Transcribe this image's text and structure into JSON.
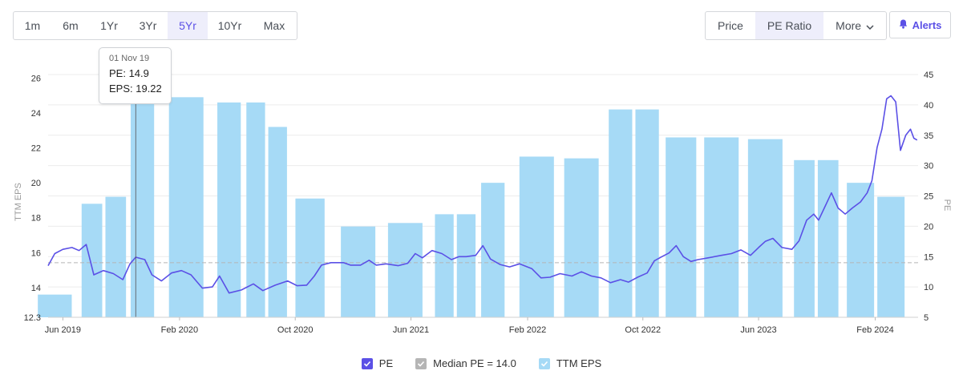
{
  "toolbar": {
    "ranges": [
      {
        "label": "1m",
        "active": false
      },
      {
        "label": "6m",
        "active": false
      },
      {
        "label": "1Yr",
        "active": false
      },
      {
        "label": "3Yr",
        "active": false
      },
      {
        "label": "5Yr",
        "active": true
      },
      {
        "label": "10Yr",
        "active": false
      },
      {
        "label": "Max",
        "active": false
      }
    ],
    "views": [
      {
        "label": "Price",
        "active": false
      },
      {
        "label": "PE Ratio",
        "active": true
      },
      {
        "label": "More",
        "active": false,
        "icon": "chevron-down-icon"
      }
    ],
    "alerts_label": "Alerts",
    "alerts_icon": "bell-icon"
  },
  "tooltip": {
    "date": "01 Nov 19",
    "pe": "PE: 14.9",
    "eps": "EPS: 19.22"
  },
  "legend": [
    {
      "label": "PE",
      "color": "#5b50e6",
      "checked": true
    },
    {
      "label": "Median PE = 14.0",
      "color": "#b5b5b5",
      "checked": true
    },
    {
      "label": "TTM EPS",
      "color": "#a6daf6",
      "checked": true
    }
  ],
  "chart_data": {
    "type": "bar",
    "x_ticks": [
      "Jun 2019",
      "Feb 2020",
      "Oct 2020",
      "Jun 2021",
      "Feb 2022",
      "Oct 2022",
      "Jun 2023",
      "Feb 2024"
    ],
    "ylabel_left": "TTM EPS",
    "ylabel_right": "PE",
    "y_left_ticks": [
      12.3,
      14,
      16,
      18,
      20,
      22,
      24,
      26
    ],
    "y_right_ticks": [
      5,
      10,
      15,
      20,
      25,
      30,
      35,
      40,
      45
    ],
    "ylim_left": [
      12.3,
      26.2
    ],
    "ylim_right": [
      5,
      45
    ],
    "xlim": [
      "2019-05-01",
      "2024-05-01"
    ],
    "grid": true,
    "bar_color": "#a6daf6",
    "pe_color": "#5b50e6",
    "median_pe": 14.0,
    "median_color": "#b5b5b5",
    "eps_series": {
      "name": "TTM EPS",
      "points": [
        {
          "date": "2019-05-15",
          "value": 13.6
        },
        {
          "date": "2019-08-01",
          "value": 18.8
        },
        {
          "date": "2019-09-20",
          "value": 19.2
        },
        {
          "date": "2019-11-15",
          "value": 24.8
        },
        {
          "date": "2020-02-15",
          "value": 24.9
        },
        {
          "date": "2020-05-15",
          "value": 24.6
        },
        {
          "date": "2020-07-10",
          "value": 24.6
        },
        {
          "date": "2020-08-25",
          "value": 23.2
        },
        {
          "date": "2020-11-01",
          "value": 19.1
        },
        {
          "date": "2021-02-10",
          "value": 17.5
        },
        {
          "date": "2021-05-20",
          "value": 17.7
        },
        {
          "date": "2021-08-10",
          "value": 18.2
        },
        {
          "date": "2021-09-25",
          "value": 18.2
        },
        {
          "date": "2021-11-20",
          "value": 20.0
        },
        {
          "date": "2022-02-20",
          "value": 21.5
        },
        {
          "date": "2022-05-25",
          "value": 21.4
        },
        {
          "date": "2022-08-15",
          "value": 24.2
        },
        {
          "date": "2022-10-10",
          "value": 24.2
        },
        {
          "date": "2022-12-20",
          "value": 22.6
        },
        {
          "date": "2023-03-15",
          "value": 22.6
        },
        {
          "date": "2023-06-15",
          "value": 22.5
        },
        {
          "date": "2023-09-05",
          "value": 21.3
        },
        {
          "date": "2023-10-25",
          "value": 21.3
        },
        {
          "date": "2024-01-01",
          "value": 20.0
        },
        {
          "date": "2024-03-05",
          "value": 19.2
        }
      ]
    },
    "pe_series": {
      "name": "PE",
      "points": [
        [
          "2019-05-01",
          13.5
        ],
        [
          "2019-05-15",
          15.5
        ],
        [
          "2019-06-01",
          16.2
        ],
        [
          "2019-06-20",
          16.5
        ],
        [
          "2019-07-05",
          16.0
        ],
        [
          "2019-07-20",
          17.0
        ],
        [
          "2019-08-05",
          12.0
        ],
        [
          "2019-08-25",
          12.7
        ],
        [
          "2019-09-15",
          12.2
        ],
        [
          "2019-10-05",
          11.2
        ],
        [
          "2019-10-20",
          13.8
        ],
        [
          "2019-11-01",
          14.9
        ],
        [
          "2019-11-20",
          14.5
        ],
        [
          "2019-12-05",
          12.0
        ],
        [
          "2019-12-25",
          11.0
        ],
        [
          "2020-01-15",
          12.3
        ],
        [
          "2020-02-05",
          12.7
        ],
        [
          "2020-02-25",
          12.0
        ],
        [
          "2020-03-20",
          9.8
        ],
        [
          "2020-04-10",
          10.0
        ],
        [
          "2020-04-25",
          11.8
        ],
        [
          "2020-05-15",
          9.0
        ],
        [
          "2020-06-10",
          9.5
        ],
        [
          "2020-07-05",
          10.5
        ],
        [
          "2020-07-25",
          9.4
        ],
        [
          "2020-08-20",
          10.3
        ],
        [
          "2020-09-15",
          11.0
        ],
        [
          "2020-10-05",
          10.2
        ],
        [
          "2020-10-25",
          10.3
        ],
        [
          "2020-11-10",
          11.8
        ],
        [
          "2020-11-25",
          13.6
        ],
        [
          "2020-12-15",
          14.0
        ],
        [
          "2021-01-10",
          14.0
        ],
        [
          "2021-01-25",
          13.6
        ],
        [
          "2021-02-15",
          13.6
        ],
        [
          "2021-03-05",
          14.4
        ],
        [
          "2021-03-20",
          13.6
        ],
        [
          "2021-04-10",
          13.8
        ],
        [
          "2021-05-05",
          13.5
        ],
        [
          "2021-05-25",
          13.9
        ],
        [
          "2021-06-10",
          15.5
        ],
        [
          "2021-06-25",
          14.8
        ],
        [
          "2021-07-15",
          16.0
        ],
        [
          "2021-08-05",
          15.5
        ],
        [
          "2021-08-25",
          14.5
        ],
        [
          "2021-09-10",
          15.0
        ],
        [
          "2021-09-25",
          15.0
        ],
        [
          "2021-10-15",
          15.2
        ],
        [
          "2021-10-30",
          16.8
        ],
        [
          "2021-11-15",
          14.6
        ],
        [
          "2021-12-05",
          13.7
        ],
        [
          "2021-12-25",
          13.3
        ],
        [
          "2022-01-15",
          13.8
        ],
        [
          "2022-02-10",
          13.0
        ],
        [
          "2022-03-01",
          11.5
        ],
        [
          "2022-03-20",
          11.6
        ],
        [
          "2022-04-10",
          12.2
        ],
        [
          "2022-05-05",
          11.8
        ],
        [
          "2022-05-25",
          12.5
        ],
        [
          "2022-06-15",
          11.8
        ],
        [
          "2022-07-05",
          11.5
        ],
        [
          "2022-07-25",
          10.7
        ],
        [
          "2022-08-15",
          11.2
        ],
        [
          "2022-09-01",
          10.8
        ],
        [
          "2022-09-20",
          11.6
        ],
        [
          "2022-10-10",
          12.3
        ],
        [
          "2022-10-25",
          14.3
        ],
        [
          "2022-11-10",
          15.0
        ],
        [
          "2022-11-25",
          15.6
        ],
        [
          "2022-12-10",
          16.8
        ],
        [
          "2022-12-25",
          15.0
        ],
        [
          "2023-01-10",
          14.2
        ],
        [
          "2023-01-25",
          14.5
        ],
        [
          "2023-02-15",
          14.8
        ],
        [
          "2023-03-15",
          15.2
        ],
        [
          "2023-04-05",
          15.5
        ],
        [
          "2023-04-25",
          16.1
        ],
        [
          "2023-05-15",
          15.2
        ],
        [
          "2023-06-01",
          16.5
        ],
        [
          "2023-06-15",
          17.5
        ],
        [
          "2023-07-01",
          18.0
        ],
        [
          "2023-07-20",
          16.5
        ],
        [
          "2023-08-10",
          16.2
        ],
        [
          "2023-08-25",
          17.6
        ],
        [
          "2023-09-10",
          21.0
        ],
        [
          "2023-09-25",
          22.0
        ],
        [
          "2023-10-05",
          21.0
        ],
        [
          "2023-10-20",
          23.5
        ],
        [
          "2023-11-01",
          25.5
        ],
        [
          "2023-11-15",
          23.0
        ],
        [
          "2023-11-30",
          22.0
        ],
        [
          "2023-12-15",
          23.0
        ],
        [
          "2024-01-01",
          24.0
        ],
        [
          "2024-01-15",
          25.5
        ],
        [
          "2024-01-25",
          27.5
        ],
        [
          "2024-02-05",
          33.0
        ],
        [
          "2024-02-15",
          36.0
        ],
        [
          "2024-02-25",
          41.0
        ],
        [
          "2024-03-05",
          41.5
        ],
        [
          "2024-03-15",
          40.5
        ],
        [
          "2024-03-25",
          32.5
        ],
        [
          "2024-04-05",
          35.0
        ],
        [
          "2024-04-15",
          36.0
        ],
        [
          "2024-04-22",
          34.5
        ],
        [
          "2024-04-29",
          34.2
        ]
      ]
    },
    "hover_date": "2019-11-01"
  }
}
